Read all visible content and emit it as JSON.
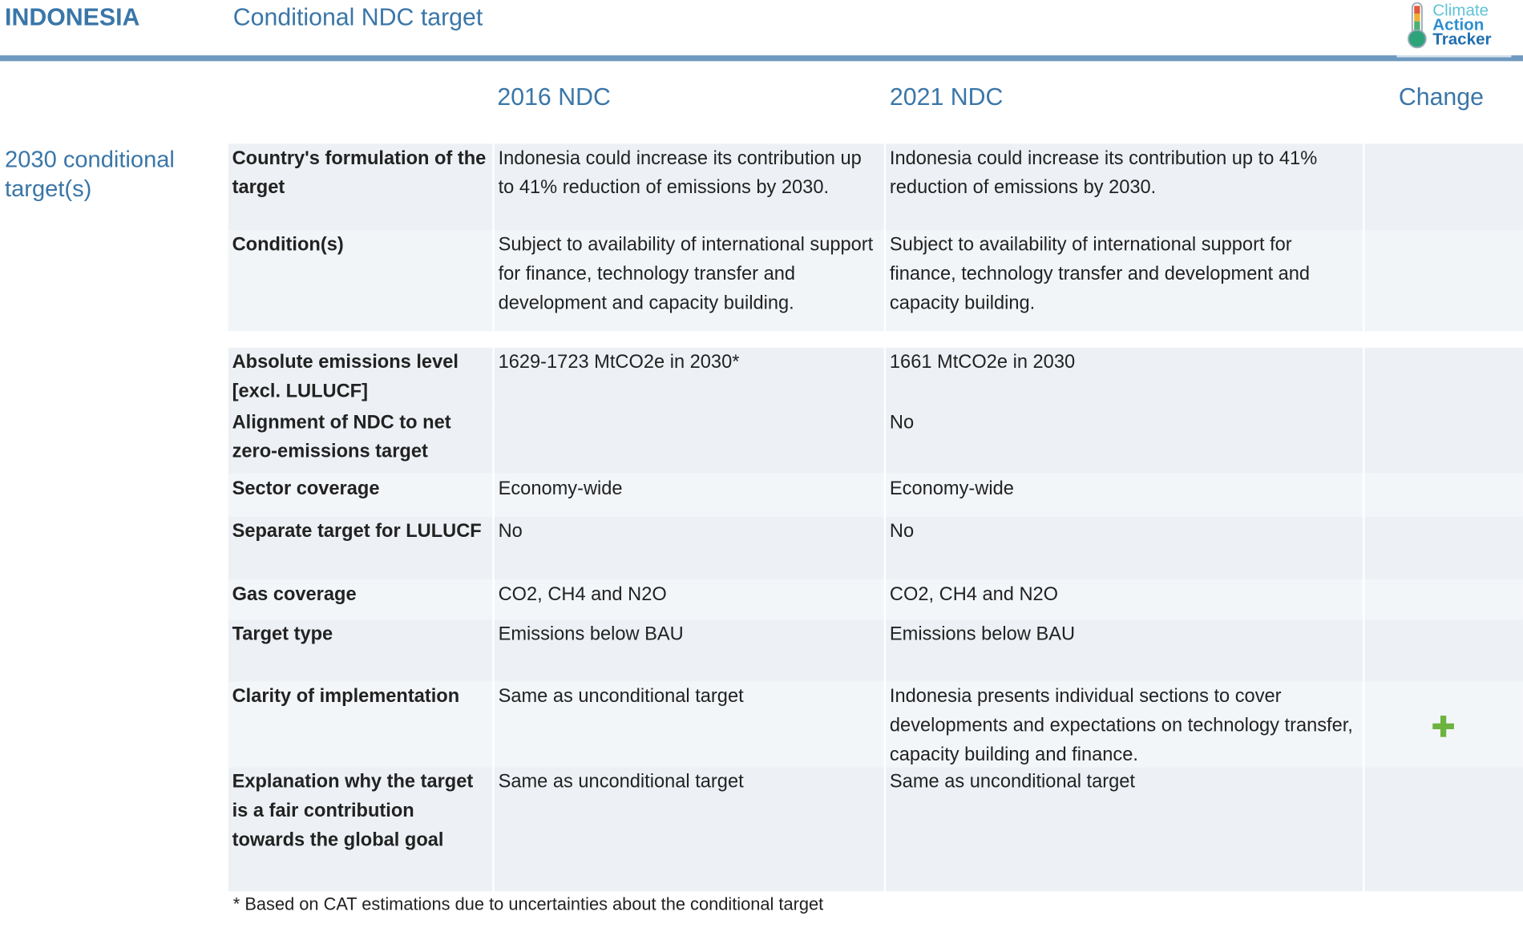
{
  "header": {
    "country": "INDONESIA",
    "title": "Conditional NDC target",
    "logo": [
      "Climate",
      "Action",
      "Tracker"
    ]
  },
  "columns": [
    "2016 NDC",
    "2021 NDC",
    "Change"
  ],
  "section": "2030 conditional target(s)",
  "rows": [
    {
      "label": "Country's formulation of the target",
      "ndc_2016": "Indonesia could increase its contribution up to 41% reduction of emissions by 2030.",
      "ndc_2021": "Indonesia could increase its contribution up to 41% reduction of emissions by 2030."
    },
    {
      "label": "Condition(s)",
      "ndc_2016": "Subject to availability of international support for finance, technology transfer and development and capacity building.",
      "ndc_2021": "Subject to availability of international support for finance, technology transfer and development and capacity building."
    },
    {
      "label": "Absolute emissions level [excl. LULUCF]",
      "ndc_2016": "1629-1723 MtCO2e in 2030*",
      "ndc_2021": "1661 MtCO2e in 2030"
    },
    {
      "label": "Alignment of NDC to net zero-emissions target",
      "ndc_2016": "",
      "ndc_2021": "No"
    },
    {
      "label": "Sector coverage",
      "ndc_2016": "Economy-wide",
      "ndc_2021": "Economy-wide"
    },
    {
      "label": "Separate target for LULUCF",
      "ndc_2016": "No",
      "ndc_2021": "No"
    },
    {
      "label": "Gas coverage",
      "ndc_2016": "CO2, CH4 and N2O",
      "ndc_2021": "CO2, CH4 and N2O"
    },
    {
      "label": "Target type",
      "ndc_2016": "Emissions below BAU",
      "ndc_2021": "Emissions below BAU"
    },
    {
      "label": "Clarity of implementation",
      "ndc_2016": "Same as unconditional target",
      "ndc_2021": "Indonesia presents individual sections to cover developments and expectations on technology transfer, capacity building and finance."
    },
    {
      "label": "Explanation why the target is a fair contribution towards the global goal",
      "ndc_2016": "Same as unconditional target",
      "ndc_2021": "Same as unconditional target"
    }
  ],
  "footnote": "* Based on CAT estimations due to uncertainties about the conditional target"
}
